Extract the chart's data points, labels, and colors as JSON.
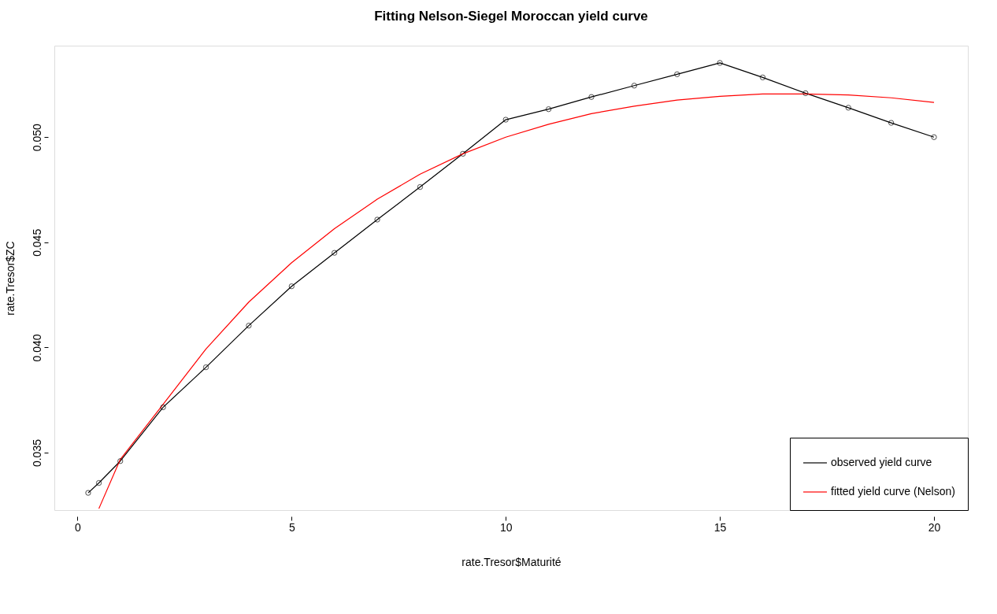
{
  "chart_data": {
    "type": "line",
    "title": "Fitting Nelson-Siegel Moroccan yield curve",
    "xlabel": "rate.Tresor$Maturité",
    "ylabel": "rate.Tresor$ZC",
    "xlim": [
      -0.54,
      20.79
    ],
    "ylim": [
      0.03227,
      0.05435
    ],
    "xticks": [
      0,
      5,
      10,
      15,
      20
    ],
    "yticks": [
      {
        "value": 0.035,
        "label": "0.035"
      },
      {
        "value": 0.04,
        "label": "0.040"
      },
      {
        "value": 0.045,
        "label": "0.045"
      },
      {
        "value": 0.05,
        "label": "0.050"
      }
    ],
    "grid": false,
    "legend": "bottom right",
    "series": [
      {
        "name": "observed yield curve",
        "color": "#000000",
        "marker": "circle",
        "x": [
          0.25,
          0.5,
          1,
          2,
          3,
          4,
          5,
          6,
          7,
          8,
          9,
          10,
          11,
          12,
          13,
          14,
          15,
          16,
          17,
          18,
          19,
          20
        ],
        "values": [
          0.03309,
          0.03356,
          0.0346,
          0.03716,
          0.03906,
          0.04104,
          0.04291,
          0.0445,
          0.04608,
          0.04763,
          0.04921,
          0.05083,
          0.05133,
          0.05191,
          0.05245,
          0.05299,
          0.05353,
          0.05284,
          0.05209,
          0.0514,
          0.05068,
          0.05
        ]
      },
      {
        "name": "fitted yield curve (Nelson)",
        "color": "#ff0000",
        "marker": "none",
        "x": [
          0.5,
          1,
          2,
          3,
          4,
          5,
          6,
          7,
          8,
          9,
          10,
          11,
          12,
          13,
          14,
          15,
          16,
          17,
          18,
          19,
          20
        ],
        "values": [
          0.03234,
          0.03468,
          0.0373,
          0.03993,
          0.04216,
          0.04403,
          0.04565,
          0.04705,
          0.04824,
          0.04921,
          0.05,
          0.05061,
          0.05112,
          0.05147,
          0.05176,
          0.05194,
          0.05205,
          0.05205,
          0.05201,
          0.05187,
          0.05165
        ]
      }
    ]
  }
}
